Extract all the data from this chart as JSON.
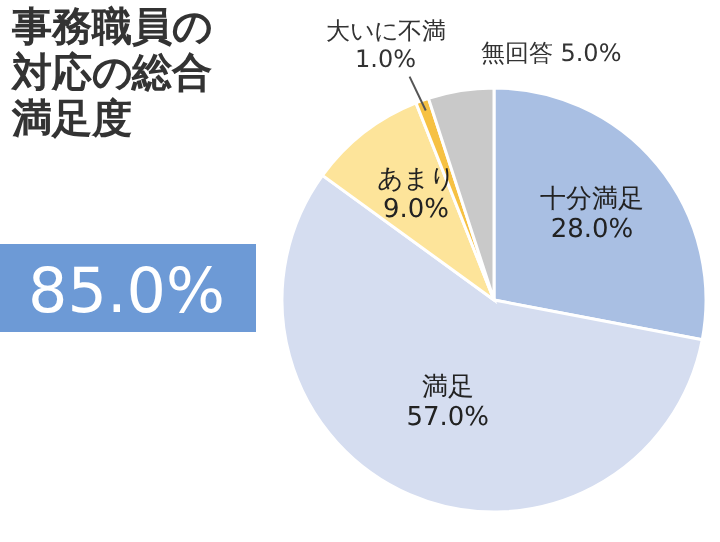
{
  "chart_data": {
    "type": "pie",
    "title": "事務職員の対応の総合満足度",
    "categories": [
      "十分満足",
      "満足",
      "あまり",
      "大いに不満",
      "無回答"
    ],
    "values": [
      28.0,
      57.0,
      9.0,
      1.0,
      5.0
    ],
    "value_labels": [
      "28.0%",
      "57.0%",
      "9.0%",
      "1.0%",
      "5.0%"
    ],
    "colors": [
      "#a9bfe3",
      "#d5ddf0",
      "#fde49a",
      "#f6c143",
      "#c9c9c9"
    ],
    "annotations": [
      "85.0%"
    ]
  }
}
